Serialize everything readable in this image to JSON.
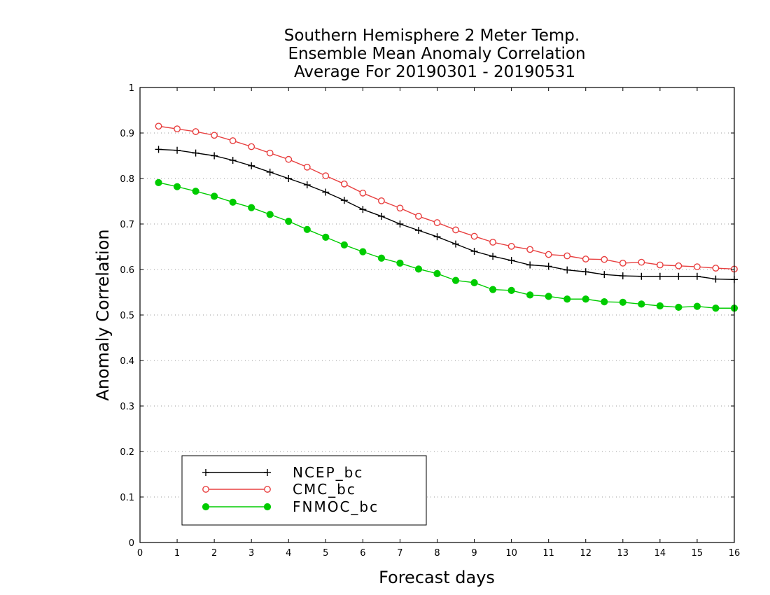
{
  "chart_data": {
    "type": "line",
    "title": [
      "Southern Hemisphere 2 Meter Temp.",
      "Ensemble Mean Anomaly Correlation",
      "Average For 20190301 - 20190531"
    ],
    "xlabel": "Forecast days",
    "ylabel": "Anomaly Correlation",
    "xlim": [
      0,
      16
    ],
    "ylim": [
      0,
      1
    ],
    "xticks": [
      0,
      1,
      2,
      3,
      4,
      5,
      6,
      7,
      8,
      9,
      10,
      11,
      12,
      13,
      14,
      15,
      16
    ],
    "yticks": [
      0,
      0.1,
      0.2,
      0.3,
      0.4,
      0.5,
      0.6,
      0.7,
      0.8,
      0.9,
      1
    ],
    "ytick_labels": [
      "0",
      "0.1",
      "0.2",
      "0.3",
      "0.4",
      "0.5",
      "0.6",
      "0.7",
      "0.8",
      "0.9",
      "1"
    ],
    "grid": "horizontal-dotted",
    "legend_position": "bottom-left",
    "x": [
      0.5,
      1,
      1.5,
      2,
      2.5,
      3,
      3.5,
      4,
      4.5,
      5,
      5.5,
      6,
      6.5,
      7,
      7.5,
      8,
      8.5,
      9,
      9.5,
      10,
      10.5,
      11,
      11.5,
      12,
      12.5,
      13,
      13.5,
      14,
      14.5,
      15,
      15.5,
      16
    ],
    "series": [
      {
        "name": "NCEP_bc",
        "color": "#000000",
        "marker": "plus",
        "values": [
          0.864,
          0.862,
          0.856,
          0.85,
          0.84,
          0.828,
          0.814,
          0.8,
          0.786,
          0.77,
          0.752,
          0.732,
          0.717,
          0.7,
          0.686,
          0.672,
          0.656,
          0.64,
          0.629,
          0.62,
          0.61,
          0.607,
          0.599,
          0.595,
          0.589,
          0.586,
          0.585,
          0.585,
          0.585,
          0.585,
          0.579,
          0.578
        ]
      },
      {
        "name": "CMC_bc",
        "color": "#e84040",
        "marker": "open-circle",
        "values": [
          0.915,
          0.909,
          0.903,
          0.895,
          0.883,
          0.87,
          0.856,
          0.842,
          0.825,
          0.806,
          0.788,
          0.768,
          0.751,
          0.735,
          0.717,
          0.703,
          0.687,
          0.673,
          0.66,
          0.651,
          0.644,
          0.633,
          0.63,
          0.623,
          0.622,
          0.614,
          0.616,
          0.61,
          0.608,
          0.606,
          0.603,
          0.601
        ]
      },
      {
        "name": "FNMOC_bc",
        "color": "#00cc00",
        "marker": "filled-circle",
        "values": [
          0.791,
          0.782,
          0.772,
          0.761,
          0.748,
          0.736,
          0.721,
          0.706,
          0.688,
          0.671,
          0.654,
          0.639,
          0.625,
          0.614,
          0.601,
          0.591,
          0.576,
          0.571,
          0.556,
          0.554,
          0.544,
          0.541,
          0.535,
          0.535,
          0.529,
          0.528,
          0.524,
          0.52,
          0.517,
          0.519,
          0.515,
          0.515
        ]
      }
    ]
  }
}
